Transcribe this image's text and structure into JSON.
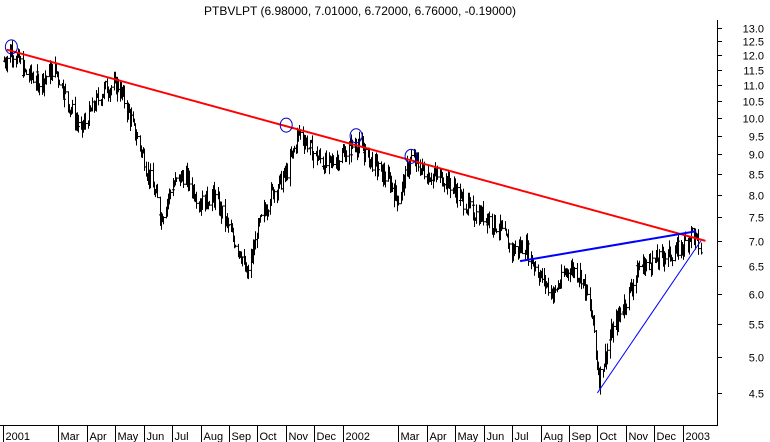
{
  "chart_data": {
    "type": "bar",
    "subtype": "ohlc",
    "title": "PTBVLPT (6.98000, 7.01000, 6.72000, 6.76000, -0.19000)",
    "xlabel": "",
    "ylabel": "",
    "y_scale": "log",
    "ylim": [
      4.1,
      13.3
    ],
    "y_ticks": [
      4.5,
      5.0,
      5.5,
      6.0,
      6.5,
      7.0,
      7.5,
      8.0,
      8.5,
      9.0,
      9.5,
      10.0,
      10.5,
      11.0,
      11.5,
      12.0,
      12.5,
      13.0
    ],
    "y_tick_labels": [
      "4.5",
      "5.0",
      "5.5",
      "6.0",
      "6.5",
      "7.0",
      "7.5",
      "8.0",
      "8.5",
      "9.0",
      "9.5",
      "10.0",
      "10.5",
      "11.0",
      "11.5",
      "12.0",
      "12.5",
      "13.0"
    ],
    "x_tick_labels": [
      "2001",
      "Mar",
      "Apr",
      "May",
      "Jun",
      "Jul",
      "Aug",
      "Sep",
      "Oct",
      "Nov",
      "Dec",
      "2002",
      "Mar",
      "Apr",
      "May",
      "Jun",
      "Jul",
      "Aug",
      "Sep",
      "Oct",
      "Nov",
      "Dec",
      "2003"
    ],
    "x_ticks": [
      "2001-01",
      "2001-03",
      "2001-04",
      "2001-05",
      "2001-06",
      "2001-07",
      "2001-08",
      "2001-09",
      "2001-10",
      "2001-11",
      "2001-12",
      "2002-01",
      "2002-03",
      "2002-04",
      "2002-05",
      "2002-06",
      "2002-07",
      "2002-08",
      "2002-09",
      "2002-10",
      "2002-11",
      "2002-12",
      "2003-01"
    ],
    "grid": false,
    "legend": "none",
    "price_anchors": [
      [
        "2001-01-02",
        11.8
      ],
      [
        "2001-01-10",
        12.2
      ],
      [
        "2001-01-25",
        11.4
      ],
      [
        "2001-02-10",
        11.1
      ],
      [
        "2001-02-25",
        11.6
      ],
      [
        "2001-03-10",
        10.6
      ],
      [
        "2001-03-25",
        9.6
      ],
      [
        "2001-04-05",
        10.2
      ],
      [
        "2001-04-20",
        10.9
      ],
      [
        "2001-05-05",
        11.0
      ],
      [
        "2001-05-20",
        9.8
      ],
      [
        "2001-06-05",
        8.6
      ],
      [
        "2001-06-20",
        7.5
      ],
      [
        "2001-07-01",
        8.2
      ],
      [
        "2001-07-15",
        8.5
      ],
      [
        "2001-08-01",
        7.8
      ],
      [
        "2001-08-15",
        8.0
      ],
      [
        "2001-09-01",
        7.2
      ],
      [
        "2001-09-12",
        6.8
      ],
      [
        "2001-09-20",
        6.3
      ],
      [
        "2001-10-01",
        7.2
      ],
      [
        "2001-10-15",
        8.0
      ],
      [
        "2001-11-01",
        8.5
      ],
      [
        "2001-11-15",
        9.6
      ],
      [
        "2001-12-01",
        9.0
      ],
      [
        "2001-12-15",
        8.7
      ],
      [
        "2002-01-01",
        9.0
      ],
      [
        "2002-01-15",
        9.3
      ],
      [
        "2002-02-01",
        8.8
      ],
      [
        "2002-02-20",
        8.3
      ],
      [
        "2002-03-01",
        7.9
      ],
      [
        "2002-03-15",
        8.9
      ],
      [
        "2002-04-01",
        8.5
      ],
      [
        "2002-04-20",
        8.4
      ],
      [
        "2002-05-05",
        8.0
      ],
      [
        "2002-05-20",
        7.6
      ],
      [
        "2002-06-05",
        7.5
      ],
      [
        "2002-06-20",
        7.2
      ],
      [
        "2002-07-01",
        6.8
      ],
      [
        "2002-07-15",
        6.9
      ],
      [
        "2002-08-01",
        6.3
      ],
      [
        "2002-08-15",
        6.0
      ],
      [
        "2002-09-01",
        6.5
      ],
      [
        "2002-09-15",
        6.3
      ],
      [
        "2002-09-25",
        5.6
      ],
      [
        "2002-10-03",
        4.7
      ],
      [
        "2002-10-15",
        5.3
      ],
      [
        "2002-11-01",
        5.9
      ],
      [
        "2002-11-15",
        6.5
      ],
      [
        "2002-12-01",
        6.6
      ],
      [
        "2002-12-15",
        6.7
      ],
      [
        "2003-01-01",
        6.9
      ],
      [
        "2003-01-10",
        7.2
      ],
      [
        "2003-01-20",
        6.8
      ]
    ],
    "trendlines": [
      {
        "color": "#ff0000",
        "from": [
          "2001-01-05",
          12.2
        ],
        "to": [
          "2003-01-25",
          7.0
        ]
      },
      {
        "color": "#0000ff",
        "from": [
          "2002-07-10",
          6.6
        ],
        "to": [
          "2003-01-15",
          7.2
        ]
      },
      {
        "color": "#0000ff",
        "from": [
          "2002-10-01",
          4.5
        ],
        "to": [
          "2003-01-20",
          7.0
        ]
      }
    ],
    "highlight_circles": [
      [
        "2001-01-10",
        12.3
      ],
      [
        "2001-11-01",
        9.8
      ],
      [
        "2002-01-15",
        9.5
      ],
      [
        "2002-03-15",
        8.95
      ]
    ]
  }
}
